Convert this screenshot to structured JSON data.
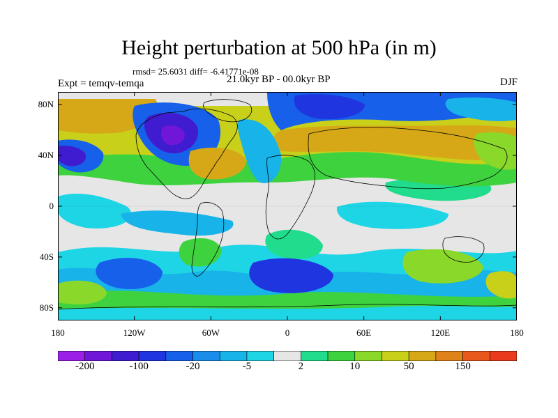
{
  "title": "Height perturbation at 500 hPa (in m)",
  "stats_text": "rmsd= 25.6031 diff= -6.41771e-08",
  "period_text": "21.0kyr BP - 00.0kyr BP",
  "experiment_text": "Expt = temqv-temqa",
  "season_text": "DJF",
  "lat_labels": [
    "80N",
    "40N",
    "0",
    "40S",
    "80S"
  ],
  "lat_values": [
    80,
    40,
    0,
    -40,
    -80
  ],
  "lon_labels": [
    "180",
    "120W",
    "60W",
    "0",
    "60E",
    "120E",
    "180"
  ],
  "lon_values": [
    -180,
    -120,
    -60,
    0,
    60,
    120,
    180
  ],
  "colorbar": {
    "colors": [
      "#9b1fe6",
      "#6f16d8",
      "#3f1ccf",
      "#1f35e0",
      "#1760ea",
      "#1a8cea",
      "#18b3e8",
      "#1ed5e6",
      "#e6e6e6",
      "#20dc8c",
      "#3fd23f",
      "#8ad82a",
      "#c8d01a",
      "#d6a817",
      "#e0821a",
      "#e8581c",
      "#ea3a1e"
    ],
    "labels": [
      "-200",
      "-100",
      "-20",
      "-5",
      "2",
      "10",
      "50",
      "150"
    ]
  }
}
